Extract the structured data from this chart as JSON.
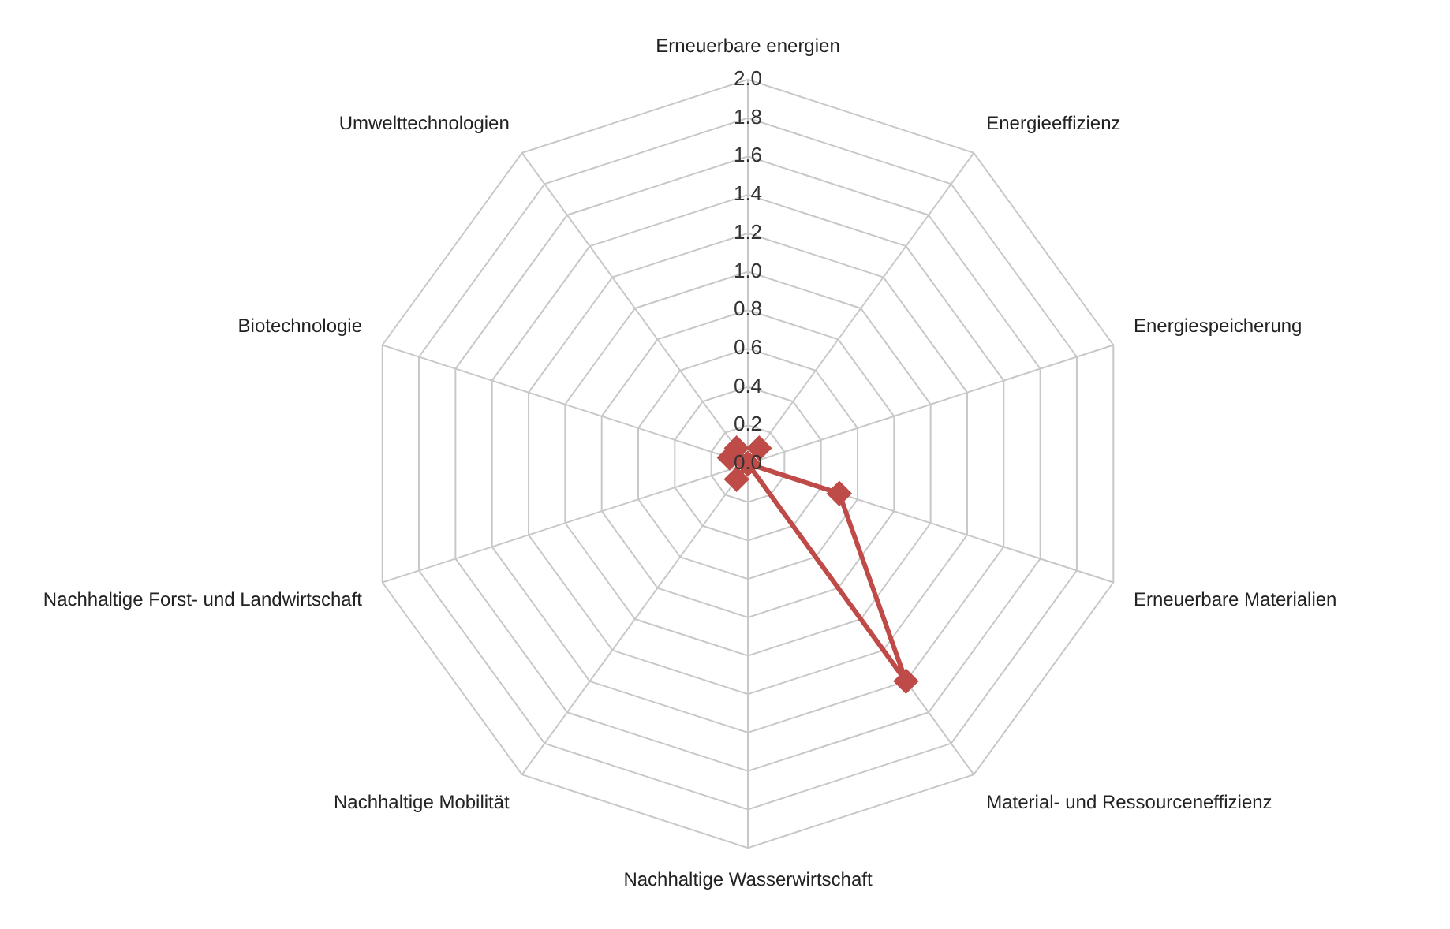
{
  "chart_data": {
    "type": "radar",
    "categories": [
      "Erneuerbare energien",
      "Energieeffizienz",
      "Energiespeicherung",
      "Erneuerbare Materialien",
      "Material- und Ressourceneffizienz",
      "Nachhaltige Wasserwirtschaft",
      "Nachhaltige Mobilität",
      "Nachhaltige Forst- und Landwirtschaft",
      "Biotechnologie",
      "Umwelttechnologien"
    ],
    "series": [
      {
        "color": "#be4b48",
        "values": [
          0,
          0.1,
          0,
          0.5,
          1.4,
          0,
          0.1,
          0,
          0.1,
          0.1
        ]
      }
    ],
    "ylim": [
      0,
      2
    ],
    "yticks": [
      {
        "value": 0,
        "label": "0.0"
      },
      {
        "value": 0.2,
        "label": "0.2"
      },
      {
        "value": 0.4,
        "label": "0.4"
      },
      {
        "value": 0.6,
        "label": "0.6"
      },
      {
        "value": 0.8,
        "label": "0.8"
      },
      {
        "value": 1,
        "label": "1.0"
      },
      {
        "value": 1.2,
        "label": "1.2"
      },
      {
        "value": 1.4,
        "label": "1.4"
      },
      {
        "value": 1.6,
        "label": "1.6"
      },
      {
        "value": 1.8,
        "label": "1.8"
      },
      {
        "value": 2,
        "label": "2.0"
      }
    ],
    "grid": true,
    "legend": false,
    "marker": "diamond",
    "line_style": "solid"
  }
}
